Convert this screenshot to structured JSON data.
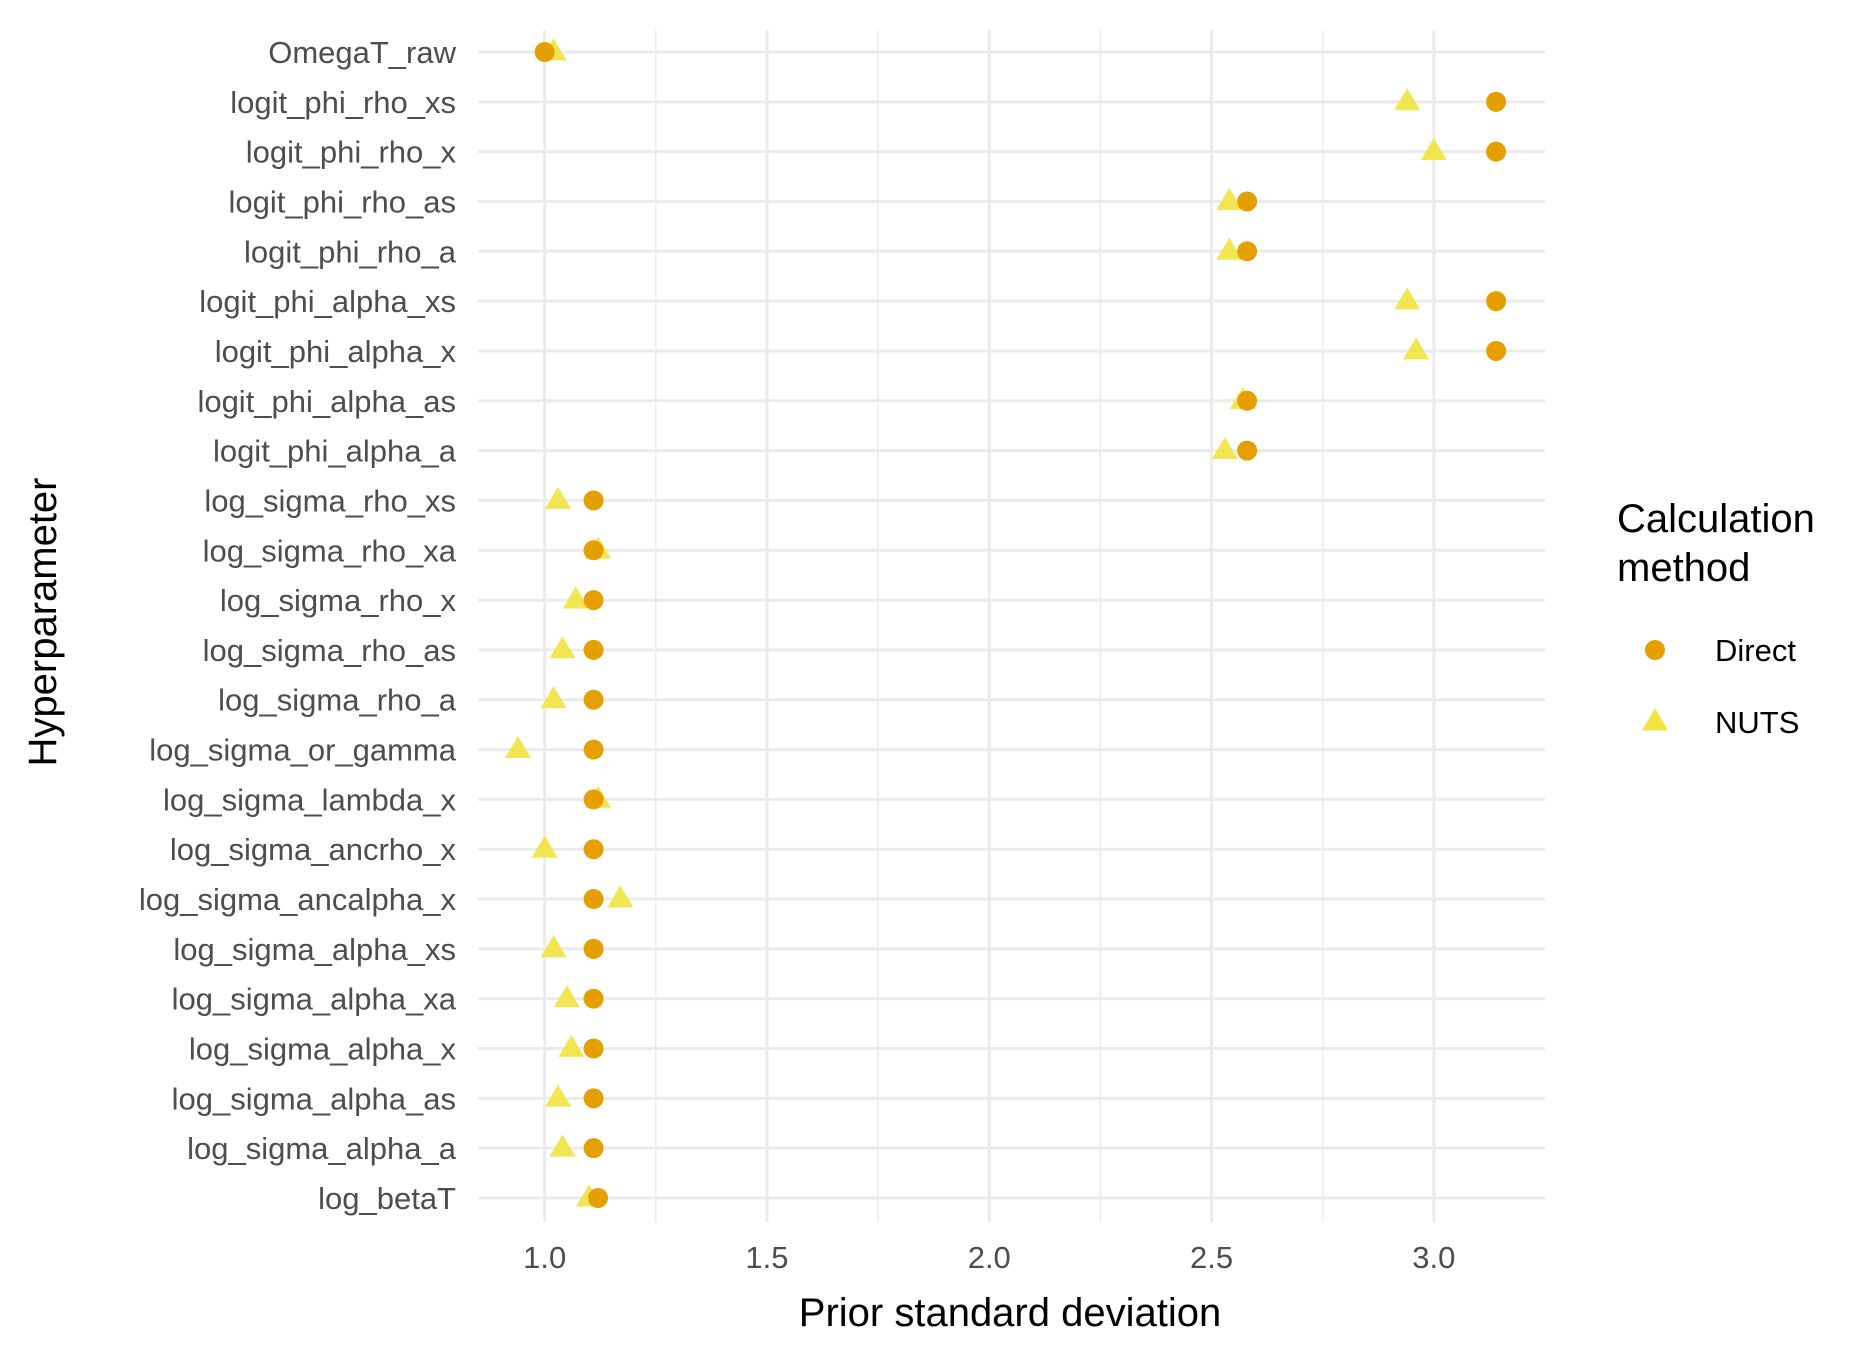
{
  "chart_data": {
    "type": "scatter",
    "xlabel": "Prior standard deviation",
    "ylabel": "Hyperparameter",
    "xlim": [
      0.85,
      3.25
    ],
    "x_ticks": [
      "1.0",
      "1.5",
      "2.0",
      "2.5",
      "3.0"
    ],
    "grid": true,
    "legend": {
      "title_lines": [
        "Calculation",
        "method"
      ],
      "placement": "right"
    },
    "categories": [
      "OmegaT_raw",
      "logit_phi_rho_xs",
      "logit_phi_rho_x",
      "logit_phi_rho_as",
      "logit_phi_rho_a",
      "logit_phi_alpha_xs",
      "logit_phi_alpha_x",
      "logit_phi_alpha_as",
      "logit_phi_alpha_a",
      "log_sigma_rho_xs",
      "log_sigma_rho_xa",
      "log_sigma_rho_x",
      "log_sigma_rho_as",
      "log_sigma_rho_a",
      "log_sigma_or_gamma",
      "log_sigma_lambda_x",
      "log_sigma_ancrho_x",
      "log_sigma_ancalpha_x",
      "log_sigma_alpha_xs",
      "log_sigma_alpha_xa",
      "log_sigma_alpha_x",
      "log_sigma_alpha_as",
      "log_sigma_alpha_a",
      "log_betaT"
    ],
    "series": [
      {
        "name": "Direct",
        "shape": "circle",
        "color": "#E69F00",
        "values": [
          1.0,
          3.14,
          3.14,
          2.58,
          2.58,
          3.14,
          3.14,
          2.58,
          2.58,
          1.11,
          1.11,
          1.11,
          1.11,
          1.11,
          1.11,
          1.11,
          1.11,
          1.11,
          1.11,
          1.11,
          1.11,
          1.11,
          1.11,
          1.12
        ]
      },
      {
        "name": "NUTS",
        "shape": "triangle",
        "color": "#F0E442",
        "values": [
          1.02,
          2.94,
          3.0,
          2.54,
          2.54,
          2.94,
          2.96,
          2.57,
          2.53,
          1.03,
          1.12,
          1.07,
          1.04,
          1.02,
          0.94,
          1.12,
          1.0,
          1.17,
          1.02,
          1.05,
          1.06,
          1.03,
          1.04,
          1.1
        ]
      }
    ]
  }
}
